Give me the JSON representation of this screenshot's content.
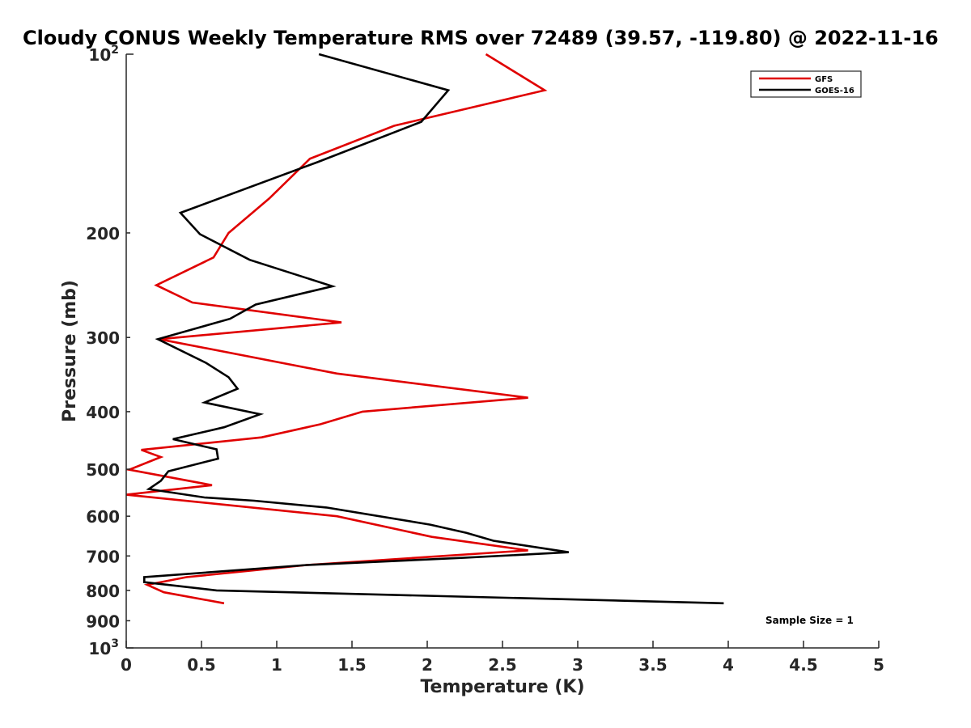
{
  "chart_data": {
    "type": "line",
    "title": "Cloudy CONUS Weekly Temperature RMS over 72489 (39.57, -119.80) @ 2022-11-16",
    "xlabel": "Temperature (K)",
    "ylabel": "Pressure (mb)",
    "xlim": [
      0,
      5
    ],
    "ylim": [
      100,
      1000
    ],
    "y_scale": "log",
    "y_reversed": true,
    "x_ticks": [
      "0",
      "0.5",
      "1",
      "1.5",
      "2",
      "2.5",
      "3",
      "3.5",
      "4",
      "4.5",
      "5"
    ],
    "y_ticks": [
      {
        "value": 100,
        "base": "10",
        "exp": "2"
      },
      {
        "value": 200,
        "label": "200"
      },
      {
        "value": 300,
        "label": "300"
      },
      {
        "value": 400,
        "label": "400"
      },
      {
        "value": 500,
        "label": "500"
      },
      {
        "value": 600,
        "label": "600"
      },
      {
        "value": 700,
        "label": "700"
      },
      {
        "value": 800,
        "label": "800"
      },
      {
        "value": 900,
        "label": "900"
      },
      {
        "value": 1000,
        "base": "10",
        "exp": "3"
      }
    ],
    "grid": false,
    "legend_position": "top-right",
    "annotation": "Sample Size = 1",
    "series": [
      {
        "name": "GFS",
        "color": "#e00000",
        "points": [
          [
            2.39,
            100
          ],
          [
            2.78,
            115
          ],
          [
            1.78,
            132
          ],
          [
            1.22,
            150
          ],
          [
            0.95,
            175
          ],
          [
            0.68,
            200
          ],
          [
            0.58,
            220
          ],
          [
            0.2,
            245
          ],
          [
            0.44,
            262
          ],
          [
            1.43,
            283
          ],
          [
            0.22,
            302
          ],
          [
            1.4,
            345
          ],
          [
            2.67,
            379
          ],
          [
            1.57,
            400
          ],
          [
            1.29,
            420
          ],
          [
            0.9,
            442
          ],
          [
            0.1,
            464
          ],
          [
            0.23,
            477
          ],
          [
            0.02,
            501
          ],
          [
            0.57,
            532
          ],
          [
            0.0,
            552
          ],
          [
            1.4,
            600
          ],
          [
            2.03,
            650
          ],
          [
            2.67,
            685
          ],
          [
            1.2,
            725
          ],
          [
            0.4,
            760
          ],
          [
            0.14,
            783
          ],
          [
            0.25,
            806
          ],
          [
            0.65,
            841
          ]
        ]
      },
      {
        "name": "GOES-16",
        "color": "#000000",
        "points": [
          [
            1.28,
            100
          ],
          [
            2.14,
            115
          ],
          [
            1.96,
            130
          ],
          [
            1.27,
            152
          ],
          [
            0.36,
            185
          ],
          [
            0.49,
            201
          ],
          [
            0.82,
            222
          ],
          [
            1.37,
            246
          ],
          [
            0.86,
            264
          ],
          [
            0.69,
            279
          ],
          [
            0.21,
            302
          ],
          [
            0.53,
            331
          ],
          [
            0.68,
            350
          ],
          [
            0.74,
            366
          ],
          [
            0.52,
            386
          ],
          [
            0.89,
            404
          ],
          [
            0.65,
            425
          ],
          [
            0.31,
            445
          ],
          [
            0.6,
            463
          ],
          [
            0.61,
            480
          ],
          [
            0.28,
            504
          ],
          [
            0.23,
            523
          ],
          [
            0.15,
            540
          ],
          [
            0.52,
            558
          ],
          [
            0.85,
            565
          ],
          [
            1.33,
            580
          ],
          [
            2.02,
            620
          ],
          [
            2.26,
            640
          ],
          [
            2.44,
            660
          ],
          [
            2.94,
            690
          ],
          [
            2.24,
            705
          ],
          [
            1.2,
            725
          ],
          [
            0.12,
            760
          ],
          [
            0.12,
            775
          ],
          [
            0.6,
            800
          ],
          [
            3.97,
            841
          ]
        ]
      }
    ]
  }
}
